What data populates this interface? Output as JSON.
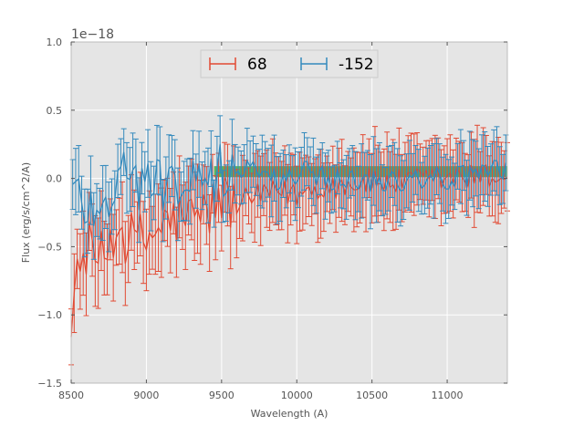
{
  "chart_data": {
    "type": "line",
    "title": "",
    "xlabel": "Wavelength (A)",
    "ylabel": "Flux (erg/s/cm^2/A)",
    "offset_label": "1e−18",
    "xlim": [
      8500,
      11400
    ],
    "ylim": [
      -1.5,
      1.0
    ],
    "x_ticks": [
      8500,
      9000,
      9500,
      10000,
      10500,
      11000
    ],
    "x_tick_labels": [
      "8500",
      "9000",
      "9500",
      "10000",
      "10500",
      "11000"
    ],
    "y_ticks": [
      1.0,
      0.5,
      0.0,
      -0.5,
      -1.0,
      -1.5
    ],
    "y_tick_labels": [
      "1.0",
      "0.5",
      "0.0",
      "−0.5",
      "−1.0",
      "−1.5"
    ],
    "grid": true,
    "legend_position": "top-center",
    "colors": {
      "background": "#e5e5e5",
      "grid": "#ffffff",
      "series_68": "#e24a33",
      "series_neg152": "#348abd",
      "band": "#2ca02c"
    },
    "series": [
      {
        "name": "68",
        "color": "#e24a33",
        "x_start": 8500,
        "x_step": 20,
        "anchors": [
          [
            8500,
            -0.95
          ],
          [
            8600,
            -0.5
          ],
          [
            8700,
            -0.6
          ],
          [
            8800,
            -0.35
          ],
          [
            8900,
            -0.45
          ],
          [
            9000,
            -0.45
          ],
          [
            9100,
            -0.35
          ],
          [
            9200,
            -0.3
          ],
          [
            9300,
            -0.3
          ],
          [
            9400,
            -0.25
          ],
          [
            9500,
            -0.15
          ],
          [
            9600,
            -0.2
          ],
          [
            9700,
            -0.15
          ],
          [
            9800,
            -0.12
          ],
          [
            9900,
            -0.1
          ],
          [
            10000,
            -0.12
          ],
          [
            10100,
            -0.08
          ],
          [
            10200,
            -0.05
          ],
          [
            10300,
            -0.05
          ],
          [
            10500,
            -0.02
          ],
          [
            10700,
            -0.03
          ],
          [
            11000,
            0.0
          ],
          [
            11400,
            0.02
          ]
        ],
        "error": 0.27
      },
      {
        "name": "-152",
        "color": "#348abd",
        "x_start": 8510,
        "x_step": 20,
        "anchors": [
          [
            8500,
            -0.05
          ],
          [
            8600,
            -0.2
          ],
          [
            8700,
            -0.15
          ],
          [
            8800,
            -0.1
          ],
          [
            8850,
            0.1
          ],
          [
            8900,
            -0.05
          ],
          [
            9000,
            0.0
          ],
          [
            9100,
            -0.05
          ],
          [
            9200,
            0.0
          ],
          [
            9300,
            -0.05
          ],
          [
            9400,
            -0.1
          ],
          [
            9500,
            0.05
          ],
          [
            9600,
            0.1
          ],
          [
            9700,
            0.05
          ],
          [
            9800,
            0.0
          ],
          [
            9900,
            0.0
          ],
          [
            10000,
            0.05
          ],
          [
            10200,
            0.0
          ],
          [
            10400,
            0.0
          ],
          [
            10600,
            -0.02
          ],
          [
            10800,
            0.02
          ],
          [
            11000,
            0.0
          ],
          [
            11200,
            0.02
          ],
          [
            11400,
            0.08
          ]
        ],
        "error": 0.22
      }
    ],
    "band": {
      "x": [
        9450,
        11400
      ],
      "y_low": 0.01,
      "y_high": 0.09
    }
  }
}
